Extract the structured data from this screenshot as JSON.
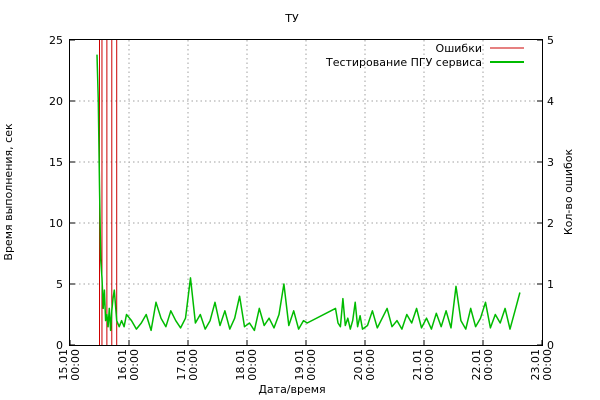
{
  "chart_data": {
    "type": "line",
    "title": "ТУ",
    "xlabel": "Дата/время",
    "ylabel": "Время выполнения, сек",
    "y2label": "Кол-во ошибок",
    "ylim": [
      0,
      25
    ],
    "y2lim": [
      0,
      5
    ],
    "yticks": [
      "0",
      "5",
      "10",
      "15",
      "20",
      "25"
    ],
    "y2ticks": [
      "0",
      "1",
      "2",
      "3",
      "4",
      "5"
    ],
    "xlim": [
      "2018-01-15T00:00",
      "2018-01-23T00:00"
    ],
    "xticks": [
      {
        "date": "15.01",
        "time": "00:00"
      },
      {
        "date": "16.01",
        "time": "00:00"
      },
      {
        "date": "17.01",
        "time": "00:00"
      },
      {
        "date": "18.01",
        "time": "00:00"
      },
      {
        "date": "19.01",
        "time": "00:00"
      },
      {
        "date": "20.01",
        "time": "00:00"
      },
      {
        "date": "21.01",
        "time": "00:00"
      },
      {
        "date": "22.01",
        "time": "00:00"
      },
      {
        "date": "23.01",
        "time": "00:00"
      }
    ],
    "grid": true,
    "legend_position": "top-right",
    "series": [
      {
        "name": "Ошибки",
        "axis": "y2",
        "style": "impulse",
        "color": "#cc0000",
        "x": [
          "2018-01-15T12:00",
          "2018-01-15T13:00",
          "2018-01-15T15:00",
          "2018-01-15T17:00",
          "2018-01-15T19:00"
        ],
        "values": [
          5,
          5,
          5,
          5,
          5
        ]
      },
      {
        "name": "Тестирование ПГУ сервиса",
        "axis": "y",
        "style": "line",
        "color": "#00bb00",
        "x": [
          "2018-01-15T11:00",
          "2018-01-15T11:30",
          "2018-01-15T12:00",
          "2018-01-15T12:30",
          "2018-01-15T13:00",
          "2018-01-15T13:30",
          "2018-01-15T14:00",
          "2018-01-15T14:30",
          "2018-01-15T15:00",
          "2018-01-15T15:30",
          "2018-01-15T16:00",
          "2018-01-15T16:30",
          "2018-01-15T17:00",
          "2018-01-15T17:30",
          "2018-01-15T18:00",
          "2018-01-15T19:00",
          "2018-01-15T20:00",
          "2018-01-15T21:00",
          "2018-01-15T22:00",
          "2018-01-15T23:00",
          "2018-01-16T01:00",
          "2018-01-16T03:00",
          "2018-01-16T05:00",
          "2018-01-16T07:00",
          "2018-01-16T09:00",
          "2018-01-16T11:00",
          "2018-01-16T13:00",
          "2018-01-16T15:00",
          "2018-01-16T17:00",
          "2018-01-16T19:00",
          "2018-01-16T21:00",
          "2018-01-16T23:00",
          "2018-01-17T01:00",
          "2018-01-17T03:00",
          "2018-01-17T05:00",
          "2018-01-17T07:00",
          "2018-01-17T09:00",
          "2018-01-17T11:00",
          "2018-01-17T13:00",
          "2018-01-17T15:00",
          "2018-01-17T17:00",
          "2018-01-17T19:00",
          "2018-01-17T21:00",
          "2018-01-17T23:00",
          "2018-01-18T01:00",
          "2018-01-18T03:00",
          "2018-01-18T05:00",
          "2018-01-18T07:00",
          "2018-01-18T09:00",
          "2018-01-18T11:00",
          "2018-01-18T13:00",
          "2018-01-18T15:00",
          "2018-01-18T17:00",
          "2018-01-18T19:00",
          "2018-01-18T21:00",
          "2018-01-18T23:00",
          "2018-01-19T00:30",
          "2018-01-19T12:00",
          "2018-01-19T13:00",
          "2018-01-19T14:00",
          "2018-01-19T15:00",
          "2018-01-19T16:00",
          "2018-01-19T17:00",
          "2018-01-19T18:00",
          "2018-01-19T19:00",
          "2018-01-19T20:00",
          "2018-01-19T21:00",
          "2018-01-19T22:00",
          "2018-01-19T23:00",
          "2018-01-20T01:00",
          "2018-01-20T03:00",
          "2018-01-20T05:00",
          "2018-01-20T07:00",
          "2018-01-20T09:00",
          "2018-01-20T11:00",
          "2018-01-20T13:00",
          "2018-01-20T15:00",
          "2018-01-20T17:00",
          "2018-01-20T19:00",
          "2018-01-20T21:00",
          "2018-01-20T23:00",
          "2018-01-21T01:00",
          "2018-01-21T03:00",
          "2018-01-21T05:00",
          "2018-01-21T07:00",
          "2018-01-21T09:00",
          "2018-01-21T11:00",
          "2018-01-21T13:00",
          "2018-01-21T15:00",
          "2018-01-21T17:00",
          "2018-01-21T19:00",
          "2018-01-21T21:00",
          "2018-01-21T23:00",
          "2018-01-22T01:00",
          "2018-01-22T03:00",
          "2018-01-22T05:00",
          "2018-01-22T07:00",
          "2018-01-22T09:00",
          "2018-01-22T11:00",
          "2018-01-22T13:00",
          "2018-01-22T15:00"
        ],
        "values": [
          23.8,
          20.0,
          13.0,
          7.0,
          5.5,
          3.0,
          4.5,
          2.0,
          2.5,
          1.5,
          3.0,
          1.2,
          2.8,
          3.8,
          4.5,
          2.0,
          1.5,
          2.0,
          1.5,
          2.5,
          2.0,
          1.3,
          1.8,
          2.5,
          1.2,
          3.5,
          2.2,
          1.5,
          2.8,
          2.0,
          1.4,
          2.2,
          5.5,
          1.8,
          2.5,
          1.3,
          2.0,
          3.5,
          1.6,
          2.8,
          1.3,
          2.2,
          4.0,
          1.5,
          1.8,
          1.2,
          3.0,
          1.6,
          2.2,
          1.4,
          2.5,
          5.0,
          1.6,
          2.8,
          1.3,
          2.0,
          1.8,
          3.0,
          1.8,
          1.5,
          3.8,
          1.6,
          2.2,
          1.3,
          2.0,
          3.5,
          1.5,
          2.4,
          1.3,
          1.6,
          2.8,
          1.4,
          2.2,
          3.0,
          1.5,
          2.0,
          1.3,
          2.5,
          1.8,
          3.0,
          1.4,
          2.2,
          1.3,
          2.6,
          1.5,
          2.8,
          1.4,
          4.8,
          2.0,
          1.3,
          3.0,
          1.5,
          2.2,
          3.5,
          1.4,
          2.5,
          1.8,
          3.0,
          1.3,
          2.8,
          4.3
        ]
      }
    ]
  }
}
